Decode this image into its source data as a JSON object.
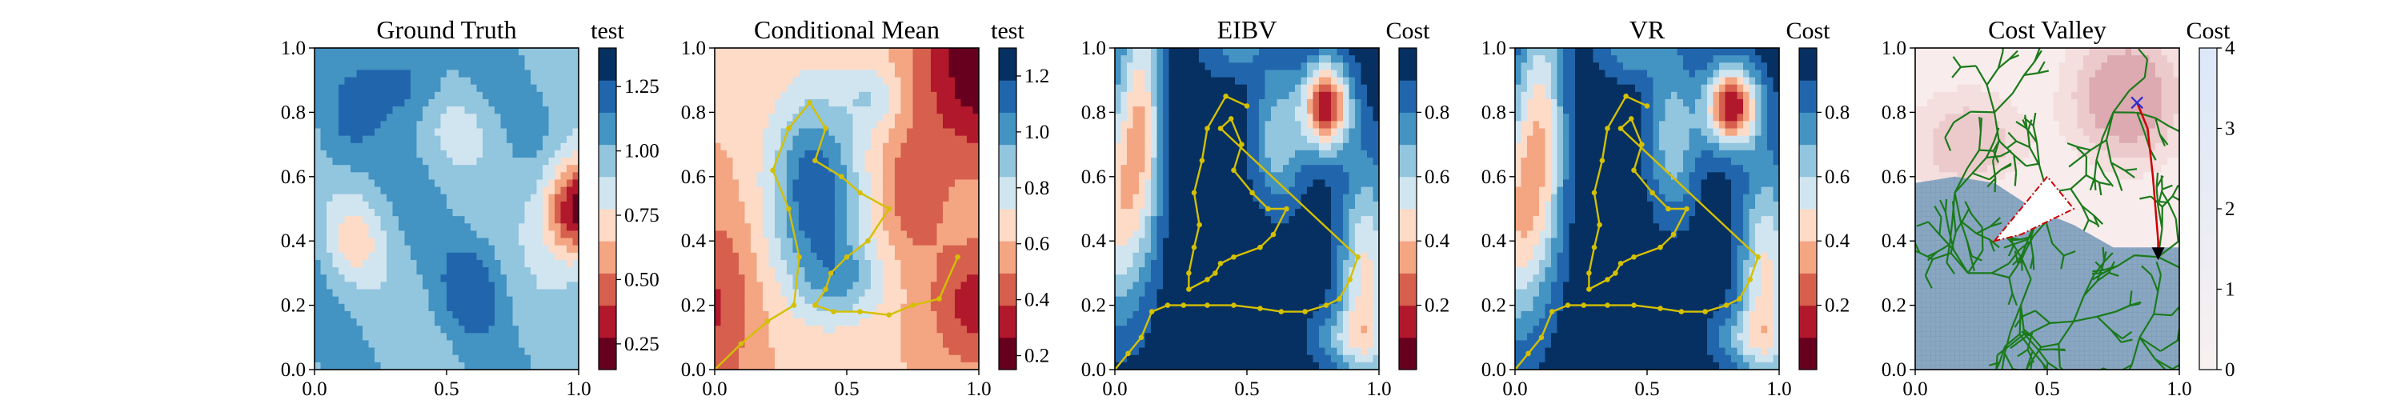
{
  "figure": {
    "panels": [
      {
        "title": "Ground Truth",
        "colorbar_label": "test"
      },
      {
        "title": "Conditional Mean",
        "colorbar_label": "test"
      },
      {
        "title": "EIBV",
        "colorbar_label": "Cost"
      },
      {
        "title": "VR",
        "colorbar_label": "Cost"
      },
      {
        "title": "Cost Valley",
        "colorbar_label": "Cost"
      }
    ]
  },
  "colors": {
    "darkred": "#67001f",
    "red": "#b2182b",
    "salmon": "#d6604d",
    "peach": "#f4a582",
    "pale_peach": "#fddbc7",
    "pale_blue": "#d1e5f0",
    "light_blue": "#92c5de",
    "mid_blue": "#4393c3",
    "blue": "#2166ac",
    "navy": "#053061",
    "path": "#d4c000",
    "tree": "#1a7a1a",
    "red_path": "#cc0000",
    "marker_x": "#2a2ad6"
  },
  "chart_data": [
    {
      "type": "heatmap",
      "title": "Ground Truth",
      "xlim": [
        0,
        1
      ],
      "ylim": [
        0,
        1
      ],
      "xticks": [
        "0.0",
        "0.5",
        "1.0"
      ],
      "yticks": [
        "0.0",
        "0.2",
        "0.4",
        "0.6",
        "0.8",
        "1.0"
      ],
      "colorbar": {
        "label": "test",
        "range": [
          0.15,
          1.4
        ],
        "ticks": [
          "0.25",
          "0.50",
          "0.75",
          "1.00",
          "1.25"
        ],
        "tick_values": [
          0.25,
          0.5,
          0.75,
          1.0,
          1.25
        ]
      }
    },
    {
      "type": "heatmap",
      "title": "Conditional Mean",
      "xlim": [
        0,
        1
      ],
      "ylim": [
        0,
        1
      ],
      "xticks": [
        "0.0",
        "0.5",
        "1.0"
      ],
      "yticks": [
        "0.0",
        "0.2",
        "0.4",
        "0.6",
        "0.8",
        "1.0"
      ],
      "colorbar": {
        "label": "test",
        "range": [
          0.15,
          1.3
        ],
        "ticks": [
          "0.2",
          "0.4",
          "0.6",
          "0.8",
          "1.0",
          "1.2"
        ],
        "tick_values": [
          0.2,
          0.4,
          0.6,
          0.8,
          1.0,
          1.2
        ]
      },
      "path": [
        [
          0.0,
          0.0
        ],
        [
          0.1,
          0.08
        ],
        [
          0.2,
          0.15
        ],
        [
          0.3,
          0.2
        ],
        [
          0.32,
          0.35
        ],
        [
          0.28,
          0.5
        ],
        [
          0.22,
          0.62
        ],
        [
          0.28,
          0.75
        ],
        [
          0.36,
          0.83
        ],
        [
          0.42,
          0.75
        ],
        [
          0.38,
          0.65
        ],
        [
          0.48,
          0.6
        ],
        [
          0.55,
          0.55
        ],
        [
          0.66,
          0.5
        ],
        [
          0.58,
          0.4
        ],
        [
          0.5,
          0.35
        ],
        [
          0.44,
          0.3
        ],
        [
          0.42,
          0.25
        ],
        [
          0.38,
          0.2
        ],
        [
          0.45,
          0.18
        ],
        [
          0.55,
          0.18
        ],
        [
          0.66,
          0.17
        ],
        [
          0.75,
          0.2
        ],
        [
          0.85,
          0.22
        ],
        [
          0.92,
          0.35
        ]
      ]
    },
    {
      "type": "heatmap",
      "title": "EIBV",
      "xlim": [
        0,
        1
      ],
      "ylim": [
        0,
        1
      ],
      "xticks": [
        "0.0",
        "0.5",
        "1.0"
      ],
      "yticks": [
        "0.0",
        "0.2",
        "0.4",
        "0.6",
        "0.8",
        "1.0"
      ],
      "colorbar": {
        "label": "Cost",
        "range": [
          0.0,
          1.0
        ],
        "ticks": [
          "0.2",
          "0.4",
          "0.6",
          "0.8"
        ],
        "tick_values": [
          0.2,
          0.4,
          0.6,
          0.8
        ]
      },
      "path": [
        [
          0.0,
          0.0
        ],
        [
          0.05,
          0.05
        ],
        [
          0.1,
          0.1
        ],
        [
          0.14,
          0.18
        ],
        [
          0.2,
          0.2
        ],
        [
          0.26,
          0.2
        ],
        [
          0.35,
          0.2
        ],
        [
          0.45,
          0.2
        ],
        [
          0.55,
          0.19
        ],
        [
          0.63,
          0.18
        ],
        [
          0.72,
          0.18
        ],
        [
          0.8,
          0.2
        ],
        [
          0.85,
          0.22
        ],
        [
          0.89,
          0.28
        ],
        [
          0.92,
          0.35
        ],
        [
          0.4,
          0.75
        ],
        [
          0.44,
          0.78
        ],
        [
          0.48,
          0.7
        ],
        [
          0.45,
          0.62
        ],
        [
          0.52,
          0.55
        ],
        [
          0.58,
          0.5
        ],
        [
          0.65,
          0.5
        ],
        [
          0.6,
          0.42
        ],
        [
          0.55,
          0.38
        ],
        [
          0.45,
          0.35
        ],
        [
          0.4,
          0.33
        ],
        [
          0.38,
          0.3
        ],
        [
          0.35,
          0.28
        ],
        [
          0.28,
          0.25
        ],
        [
          0.28,
          0.3
        ],
        [
          0.3,
          0.38
        ],
        [
          0.32,
          0.45
        ],
        [
          0.3,
          0.55
        ],
        [
          0.33,
          0.65
        ],
        [
          0.35,
          0.75
        ],
        [
          0.42,
          0.85
        ],
        [
          0.5,
          0.82
        ]
      ]
    },
    {
      "type": "heatmap",
      "title": "VR",
      "xlim": [
        0,
        1
      ],
      "ylim": [
        0,
        1
      ],
      "xticks": [
        "0.0",
        "0.5",
        "1.0"
      ],
      "yticks": [
        "0.0",
        "0.2",
        "0.4",
        "0.6",
        "0.8",
        "1.0"
      ],
      "colorbar": {
        "label": "Cost",
        "range": [
          0.0,
          1.0
        ],
        "ticks": [
          "0.2",
          "0.4",
          "0.6",
          "0.8"
        ],
        "tick_values": [
          0.2,
          0.4,
          0.6,
          0.8
        ]
      },
      "path": [
        [
          0.0,
          0.0
        ],
        [
          0.05,
          0.05
        ],
        [
          0.1,
          0.1
        ],
        [
          0.14,
          0.18
        ],
        [
          0.2,
          0.2
        ],
        [
          0.26,
          0.2
        ],
        [
          0.35,
          0.2
        ],
        [
          0.45,
          0.2
        ],
        [
          0.55,
          0.19
        ],
        [
          0.63,
          0.18
        ],
        [
          0.72,
          0.18
        ],
        [
          0.8,
          0.2
        ],
        [
          0.85,
          0.22
        ],
        [
          0.89,
          0.28
        ],
        [
          0.92,
          0.35
        ],
        [
          0.4,
          0.75
        ],
        [
          0.44,
          0.78
        ],
        [
          0.48,
          0.7
        ],
        [
          0.45,
          0.62
        ],
        [
          0.52,
          0.55
        ],
        [
          0.58,
          0.5
        ],
        [
          0.65,
          0.5
        ],
        [
          0.6,
          0.42
        ],
        [
          0.55,
          0.38
        ],
        [
          0.45,
          0.35
        ],
        [
          0.4,
          0.33
        ],
        [
          0.38,
          0.3
        ],
        [
          0.35,
          0.28
        ],
        [
          0.28,
          0.25
        ],
        [
          0.28,
          0.3
        ],
        [
          0.3,
          0.38
        ],
        [
          0.32,
          0.45
        ],
        [
          0.3,
          0.55
        ],
        [
          0.33,
          0.65
        ],
        [
          0.35,
          0.75
        ],
        [
          0.42,
          0.85
        ],
        [
          0.5,
          0.82
        ]
      ]
    },
    {
      "type": "heatmap",
      "title": "Cost Valley",
      "xlim": [
        0,
        1
      ],
      "ylim": [
        0,
        1
      ],
      "xticks": [
        "0.0",
        "0.5",
        "1.0"
      ],
      "yticks": [
        "0.0",
        "0.2",
        "0.4",
        "0.6",
        "0.8",
        "1.0"
      ],
      "colorbar": {
        "label": "Cost",
        "range": [
          0,
          4
        ],
        "ticks": [
          "0",
          "1",
          "2",
          "3",
          "4"
        ],
        "tick_values": [
          0,
          1,
          2,
          3,
          4
        ]
      },
      "obstacle_polygon": [
        [
          0.3,
          0.4
        ],
        [
          0.5,
          0.6
        ],
        [
          0.6,
          0.5
        ],
        [
          0.4,
          0.42
        ]
      ],
      "red_path": [
        [
          0.84,
          0.83
        ],
        [
          0.88,
          0.75
        ],
        [
          0.9,
          0.6
        ],
        [
          0.92,
          0.4
        ],
        [
          0.92,
          0.35
        ]
      ],
      "x_marker": [
        0.84,
        0.83
      ],
      "arrow_end": [
        0.92,
        0.35
      ]
    }
  ]
}
